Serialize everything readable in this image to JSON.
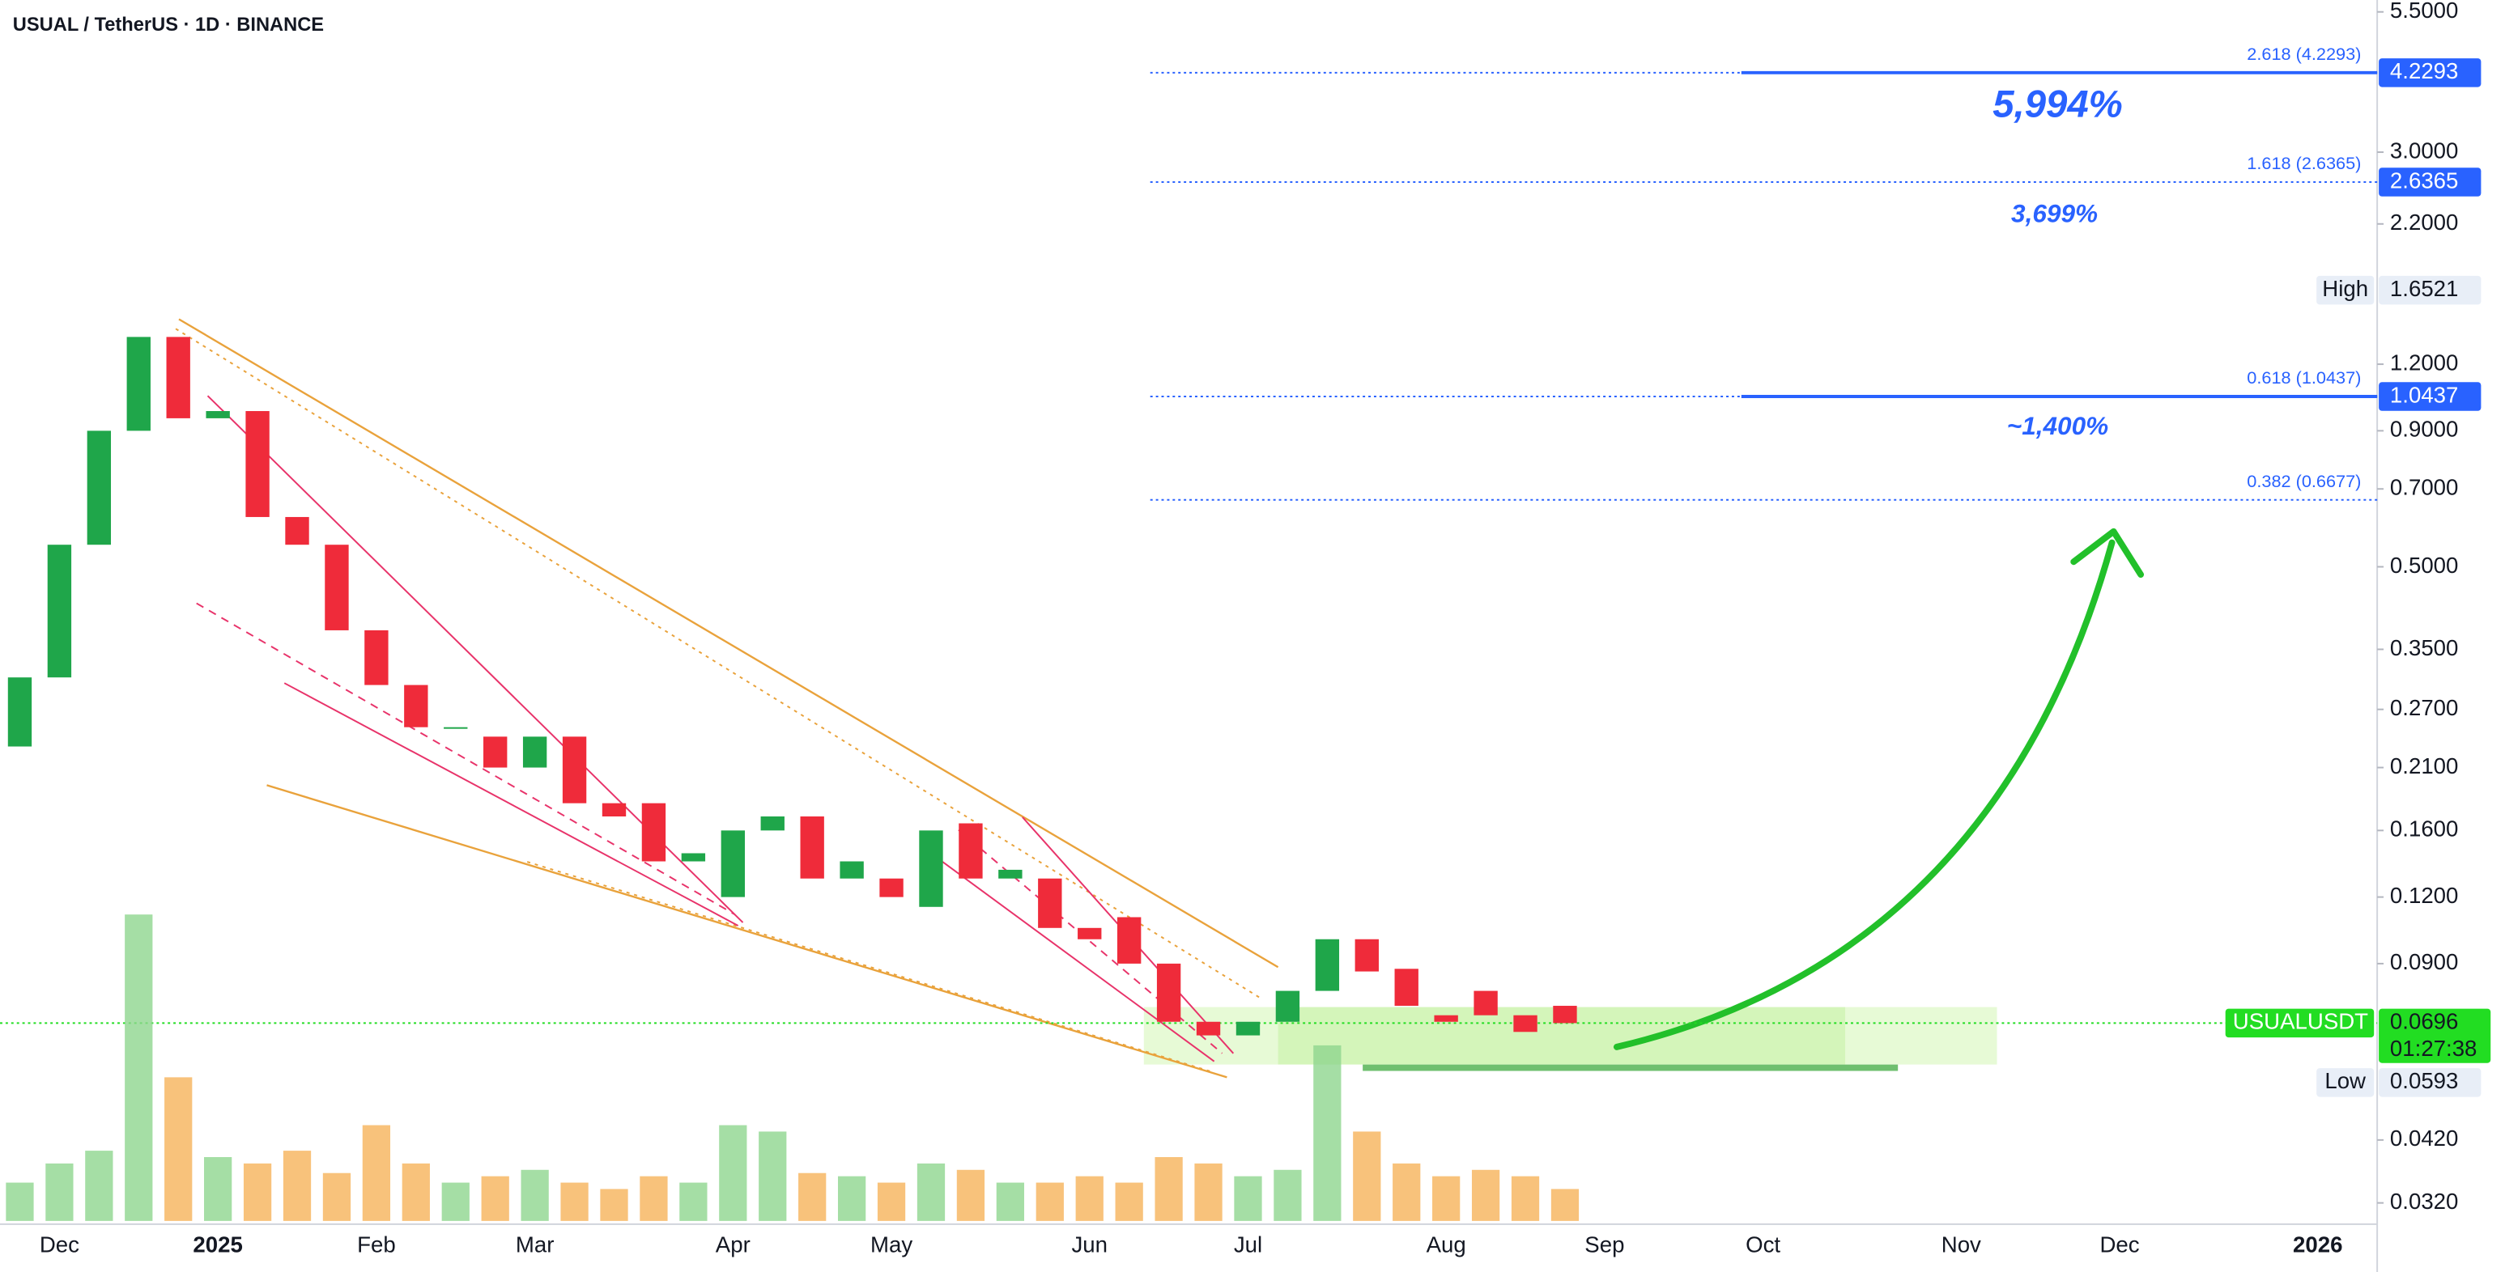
{
  "chart_data": {
    "type": "candlestick",
    "title": "USUAL / TetherUS · 1D · BINANCE",
    "log_scale": true,
    "grid": false,
    "up_color": "#1fa64a",
    "down_color": "#ef2b3a",
    "volume_up_color": "#8fd68f",
    "volume_down_color": "#f6b35a",
    "categories": [
      null,
      "Dec",
      null,
      null,
      null,
      "2025",
      null,
      null,
      null,
      "Feb",
      null,
      null,
      null,
      "Mar",
      null,
      null,
      null,
      null,
      "Apr",
      null,
      null,
      null,
      "May",
      null,
      null,
      null,
      null,
      "Jun",
      null,
      null,
      null,
      "Jul",
      null,
      null,
      null,
      null,
      "Aug",
      null,
      null,
      null,
      "Sep",
      null,
      null,
      null,
      "Oct",
      null,
      null,
      null,
      null,
      "Nov",
      null,
      null,
      null,
      "Dec",
      null,
      null,
      null,
      null,
      "2026",
      null
    ],
    "open": [
      0.23,
      0.31,
      0.55,
      0.9,
      1.35,
      0.95,
      0.98,
      0.62,
      0.55,
      0.38,
      0.3,
      0.25,
      0.24,
      0.21,
      0.24,
      0.18,
      0.18,
      0.14,
      0.12,
      0.16,
      0.17,
      0.13,
      0.13,
      0.115,
      0.165,
      0.13,
      0.13,
      0.105,
      0.11,
      0.09,
      0.07,
      0.066,
      0.07,
      0.08,
      0.1,
      0.088,
      0.072,
      0.08,
      0.072,
      0.075,
      null,
      null,
      null,
      null,
      null,
      null,
      null,
      null,
      null,
      null,
      null,
      null,
      null,
      null,
      null,
      null,
      null,
      null,
      null,
      null
    ],
    "high": {
      "label": "High",
      "value": 1.6521
    },
    "low": {
      "label": "Low",
      "value": 0.0593
    },
    "close": [
      0.31,
      0.55,
      0.9,
      1.35,
      0.95,
      0.98,
      0.62,
      0.55,
      0.38,
      0.3,
      0.25,
      0.25,
      0.21,
      0.24,
      0.18,
      0.17,
      0.14,
      0.145,
      0.16,
      0.17,
      0.13,
      0.14,
      0.12,
      0.16,
      0.13,
      0.135,
      0.105,
      0.1,
      0.09,
      0.07,
      0.066,
      0.07,
      0.08,
      0.1,
      0.087,
      0.075,
      0.07,
      0.072,
      0.067,
      0.0696,
      null,
      null,
      null,
      null,
      null,
      null,
      null,
      null,
      null,
      null,
      null,
      null,
      null,
      null,
      null,
      null,
      null,
      null,
      null,
      null
    ],
    "volume": [
      12,
      18,
      22,
      96,
      45,
      20,
      18,
      22,
      15,
      30,
      18,
      12,
      14,
      16,
      12,
      10,
      14,
      12,
      30,
      28,
      15,
      14,
      12,
      18,
      16,
      12,
      12,
      14,
      12,
      20,
      18,
      14,
      16,
      55,
      28,
      18,
      14,
      16,
      14,
      10,
      null,
      null,
      null,
      null,
      null,
      null,
      null,
      null,
      null,
      null,
      null,
      null,
      null,
      null,
      null,
      null,
      null,
      null,
      null,
      null
    ],
    "volume_lim": [
      0,
      100
    ],
    "ylim": [
      0.0286,
      5.79
    ],
    "yticks": [
      {
        "value": 5.5,
        "label": "5.5000"
      },
      {
        "value": 3.0,
        "label": "3.0000"
      },
      {
        "value": 2.2,
        "label": "2.2000"
      },
      {
        "value": 1.2,
        "label": "1.2000"
      },
      {
        "value": 0.9,
        "label": "0.9000"
      },
      {
        "value": 0.7,
        "label": "0.7000"
      },
      {
        "value": 0.5,
        "label": "0.5000"
      },
      {
        "value": 0.35,
        "label": "0.3500"
      },
      {
        "value": 0.27,
        "label": "0.2700"
      },
      {
        "value": 0.21,
        "label": "0.2100"
      },
      {
        "value": 0.16,
        "label": "0.1600"
      },
      {
        "value": 0.12,
        "label": "0.1200"
      },
      {
        "value": 0.09,
        "label": "0.0900"
      },
      {
        "value": 0.042,
        "label": "0.0420"
      },
      {
        "value": 0.032,
        "label": "0.0320"
      }
    ],
    "fib_levels": [
      {
        "label": "2.618 (4.2293)",
        "value": 4.2293,
        "color": "#2962ff"
      },
      {
        "label": "1.618 (2.6365)",
        "value": 2.6365,
        "color": "#2962ff"
      },
      {
        "label": "0.618 (1.0437)",
        "value": 1.0437,
        "color": "#2962ff"
      },
      {
        "label": "0.382 (0.6677)",
        "value": 0.6677,
        "color": "#2962ff"
      }
    ],
    "targets": [
      "5,994%",
      "3,699%",
      "~1,400%"
    ],
    "last_price": {
      "symbol": "USUALUSDT",
      "value": 0.0696,
      "countdown": "01:27:38",
      "color": "#22dd22"
    }
  }
}
